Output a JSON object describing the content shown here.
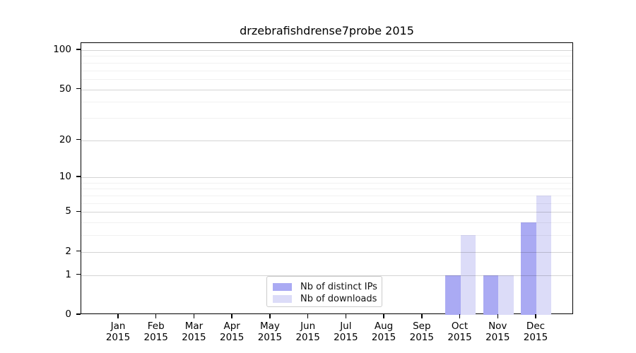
{
  "title": "drzebrafishdrense7probe 2015",
  "colors": {
    "distinct_ips": "#aaaaf3",
    "downloads": "#dcdcf8",
    "axis": "#000000",
    "grid_major": "#d5d5d5",
    "grid_minor": "#f1f1f1",
    "background": "#ffffff"
  },
  "legend": {
    "entries": [
      {
        "label": "Nb of distinct IPs",
        "color": "#aaaaf3"
      },
      {
        "label": "Nb of downloads",
        "color": "#dcdcf8"
      }
    ],
    "position": "lower center"
  },
  "chart_data": {
    "type": "bar",
    "title": "drzebrafishdrense7probe 2015",
    "categories": [
      "Jan",
      "Feb",
      "Mar",
      "Apr",
      "May",
      "Jun",
      "Jul",
      "Aug",
      "Sep",
      "Oct",
      "Nov",
      "Dec"
    ],
    "category_year": "2015",
    "series": [
      {
        "name": "Nb of distinct IPs",
        "color": "#aaaaf3",
        "values": [
          0,
          0,
          0,
          0,
          0,
          0,
          0,
          0,
          0,
          1,
          1,
          4
        ]
      },
      {
        "name": "Nb of downloads",
        "color": "#dcdcf8",
        "values": [
          0,
          0,
          0,
          0,
          0,
          0,
          0,
          0,
          0,
          3,
          1,
          7
        ]
      }
    ],
    "yscale": "log1p",
    "ylim": [
      0,
      100
    ],
    "yticks": [
      0,
      1,
      2,
      5,
      10,
      20,
      50,
      100
    ],
    "minor_gridlines": [
      3,
      4,
      6,
      7,
      8,
      9,
      30,
      40,
      60,
      70,
      80,
      90
    ],
    "grid": true,
    "legend_position": "lower center"
  }
}
